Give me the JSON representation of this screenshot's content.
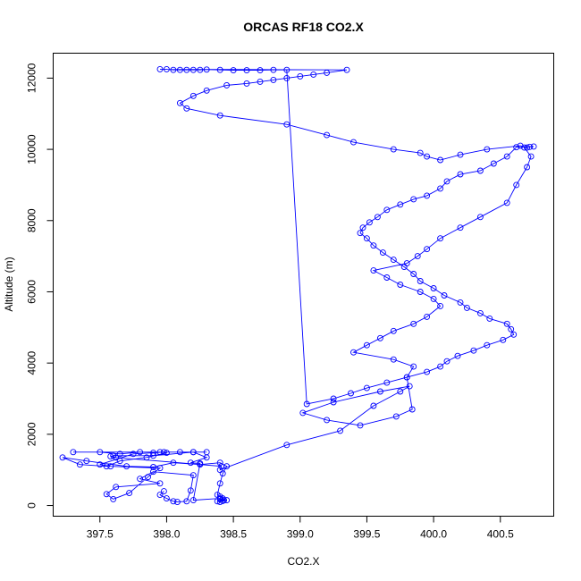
{
  "chart_data": {
    "type": "line",
    "title": "ORCAS RF18 CO2.X",
    "xlabel": "CO2.X",
    "ylabel": "Altitude (m)",
    "xlim": [
      397.15,
      400.9
    ],
    "ylim": [
      -300,
      12700
    ],
    "x_ticks": [
      397.5,
      398.0,
      398.5,
      399.0,
      399.5,
      400.0,
      400.5
    ],
    "x_tick_labels": [
      "397.5",
      "398.0",
      "398.5",
      "399.0",
      "399.5",
      "400.0",
      "400.5"
    ],
    "y_ticks": [
      0,
      2000,
      4000,
      6000,
      8000,
      10000,
      12000
    ],
    "y_tick_labels": [
      "0",
      "2000",
      "4000",
      "6000",
      "8000",
      "10000",
      "12000"
    ],
    "grid": false,
    "legend": "none",
    "color": "#0000ff",
    "series": [
      {
        "x": [
          397.98,
          397.95,
          398.0,
          398.05,
          398.08,
          398.15,
          398.18,
          398.2,
          397.9,
          397.8,
          397.95,
          397.62,
          397.55,
          397.6,
          397.72,
          397.86,
          397.95,
          397.58,
          397.5,
          397.75,
          397.9,
          397.98,
          398.0,
          397.85,
          397.65,
          397.55,
          397.35,
          397.22,
          397.4,
          397.7,
          397.9,
          398.05,
          398.25,
          398.4,
          398.45,
          398.42,
          398.4,
          398.38,
          398.4,
          398.42,
          398.4,
          398.43,
          398.38,
          398.4,
          398.42,
          398.45,
          398.4,
          398.2,
          398.25,
          398.18,
          398.3,
          398.2,
          397.3,
          397.5,
          397.65,
          397.8,
          397.95,
          398.1,
          398.3,
          398.2,
          397.9,
          397.6,
          397.58,
          397.62,
          398.41,
          398.4,
          398.9,
          399.3,
          399.55,
          399.75,
          399.82,
          399.6,
          399.25,
          399.02,
          399.2,
          399.45,
          399.72,
          399.84,
          399.8,
          399.85,
          399.7,
          399.4,
          399.5,
          399.6,
          399.7,
          399.85,
          399.95,
          400.05,
          400.0,
          399.9,
          399.75,
          399.65,
          399.55,
          399.8,
          399.88,
          399.95,
          400.05,
          400.2,
          400.35,
          400.55,
          400.62,
          400.7,
          400.73,
          400.68,
          400.72,
          400.75,
          400.62,
          400.55,
          400.45,
          400.35,
          400.2,
          400.1,
          400.05,
          399.95,
          399.85,
          399.75,
          399.65,
          399.58,
          399.52,
          399.47,
          399.45,
          399.5,
          399.55,
          399.62,
          399.7,
          399.78,
          399.85,
          399.9,
          400.0,
          400.08,
          400.2,
          400.25,
          400.35,
          400.42,
          400.55,
          400.58,
          400.6,
          400.52,
          400.4,
          400.3,
          400.18,
          400.1,
          400.05,
          399.95,
          399.8,
          399.65,
          399.5,
          399.38,
          399.25,
          399.05,
          398.9,
          398.8,
          398.7,
          398.6,
          398.5,
          398.4,
          398.3,
          398.25,
          398.2,
          398.15,
          398.1,
          398.05,
          398.0,
          397.95,
          399.35,
          399.2,
          399.1,
          399.0,
          398.9,
          398.8,
          398.7,
          398.6,
          398.45,
          398.3,
          398.2,
          398.1,
          398.15,
          398.4,
          398.9,
          399.2,
          399.4,
          399.7,
          399.9,
          399.95,
          400.05,
          400.2,
          400.4,
          400.65,
          400.7
        ],
        "y": [
          400,
          300,
          200,
          120,
          100,
          120,
          420,
          850,
          950,
          750,
          620,
          520,
          320,
          180,
          350,
          800,
          1050,
          1100,
          1150,
          1450,
          1480,
          1500,
          1480,
          1350,
          1250,
          1100,
          1150,
          1350,
          1250,
          1100,
          1080,
          1200,
          1150,
          1200,
          1100,
          900,
          620,
          300,
          250,
          200,
          180,
          150,
          120,
          100,
          130,
          150,
          200,
          150,
          1180,
          1200,
          1350,
          1500,
          1500,
          1500,
          1450,
          1500,
          1500,
          1500,
          1500,
          1500,
          1400,
          1400,
          1380,
          1350,
          1100,
          1000,
          1700,
          2100,
          2800,
          3200,
          3350,
          3200,
          2900,
          2600,
          2400,
          2250,
          2500,
          2700,
          3600,
          3900,
          4100,
          4300,
          4500,
          4700,
          4900,
          5100,
          5300,
          5600,
          5800,
          6000,
          6200,
          6400,
          6600,
          6800,
          7000,
          7200,
          7500,
          7800,
          8100,
          8500,
          9000,
          9500,
          9800,
          10050,
          10070,
          10080,
          10060,
          9800,
          9600,
          9400,
          9300,
          9100,
          8900,
          8700,
          8600,
          8450,
          8300,
          8100,
          7950,
          7800,
          7650,
          7500,
          7300,
          7100,
          6900,
          6700,
          6500,
          6300,
          6100,
          5900,
          5700,
          5550,
          5400,
          5250,
          5100,
          4950,
          4800,
          4650,
          4500,
          4350,
          4200,
          4050,
          3900,
          3750,
          3600,
          3450,
          3300,
          3150,
          3000,
          2850,
          12230,
          12230,
          12220,
          12220,
          12220,
          12230,
          12240,
          12230,
          12230,
          12230,
          12230,
          12230,
          12250,
          12250,
          12230,
          12150,
          12100,
          12050,
          12000,
          11950,
          11900,
          11850,
          11800,
          11650,
          11500,
          11300,
          11150,
          10950,
          10700,
          10400,
          10200,
          10000,
          9900,
          9800,
          9700,
          9850,
          10000,
          10100,
          10050
        ]
      }
    ]
  }
}
